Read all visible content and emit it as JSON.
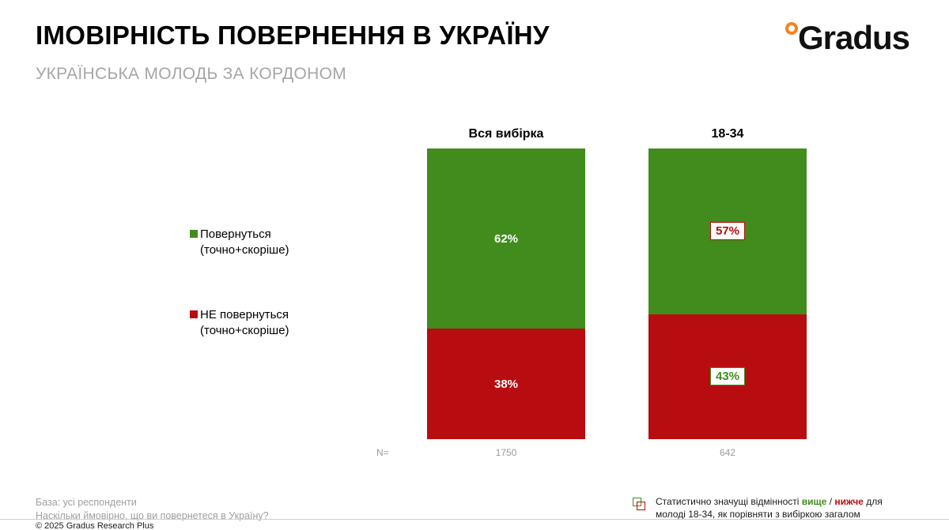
{
  "header": {
    "title": "ІМОВІРНІСТЬ ПОВЕРНЕННЯ В УКРАЇНУ",
    "subtitle": "УКРАЇНСЬКА МОЛОДЬ ЗА КОРДОНОМ",
    "logo_text": "Gradus"
  },
  "legend": {
    "items": [
      {
        "line1": "Повернуться",
        "line2": "(точно+скоріше)",
        "color": "#418c1d"
      },
      {
        "line1": "НЕ повернуться",
        "line2": "(точно+скоріше)",
        "color": "#b80d10"
      }
    ]
  },
  "chart_data": {
    "type": "bar",
    "subtype": "stacked-percent",
    "title": "ІМОВІРНІСТЬ ПОВЕРНЕННЯ В УКРАЇНУ",
    "categories": [
      "Вся вибірка",
      "18-34"
    ],
    "series_names": [
      "Повернуться (точно+скоріше)",
      "НЕ повернуться (точно+скоріше)"
    ],
    "series_colors": [
      "#418c1d",
      "#b80d10"
    ],
    "ylim": [
      0,
      100
    ],
    "grid": "off",
    "legend_position": "left",
    "n_label": "N=",
    "bars": [
      {
        "header": "Вся вибірка",
        "n": "1750",
        "segments": [
          {
            "name": "Повернуться (точно+скоріше)",
            "value": 62,
            "label": "62%",
            "significance": "none"
          },
          {
            "name": "НЕ повернуться (точно+скоріше)",
            "value": 38,
            "label": "38%",
            "significance": "none"
          }
        ]
      },
      {
        "header": "18-34",
        "n": "642",
        "segments": [
          {
            "name": "Повернуться (точно+скоріше)",
            "value": 57,
            "label": "57%",
            "significance": "lower"
          },
          {
            "name": "НЕ повернуться (точно+скоріше)",
            "value": 43,
            "label": "43%",
            "significance": "higher"
          }
        ]
      }
    ]
  },
  "note": {
    "part1": "Статистично значущі відмінності",
    "higher": "вище",
    "slash": "/",
    "lower": "нижче",
    "part2": "для",
    "line2": "молоді 18-34, як порівняти з вибіркою загалом"
  },
  "footer": {
    "base": "База: усі респонденти",
    "question": "Наскільки ймовірно, що ви повернетеся в Україну?",
    "copyright": "© 2025 Gradus Research Plus"
  },
  "colors": {
    "green": "#418c1d",
    "red": "#b80d10",
    "orange": "#f58220",
    "gray_text": "#a0a0a0"
  }
}
